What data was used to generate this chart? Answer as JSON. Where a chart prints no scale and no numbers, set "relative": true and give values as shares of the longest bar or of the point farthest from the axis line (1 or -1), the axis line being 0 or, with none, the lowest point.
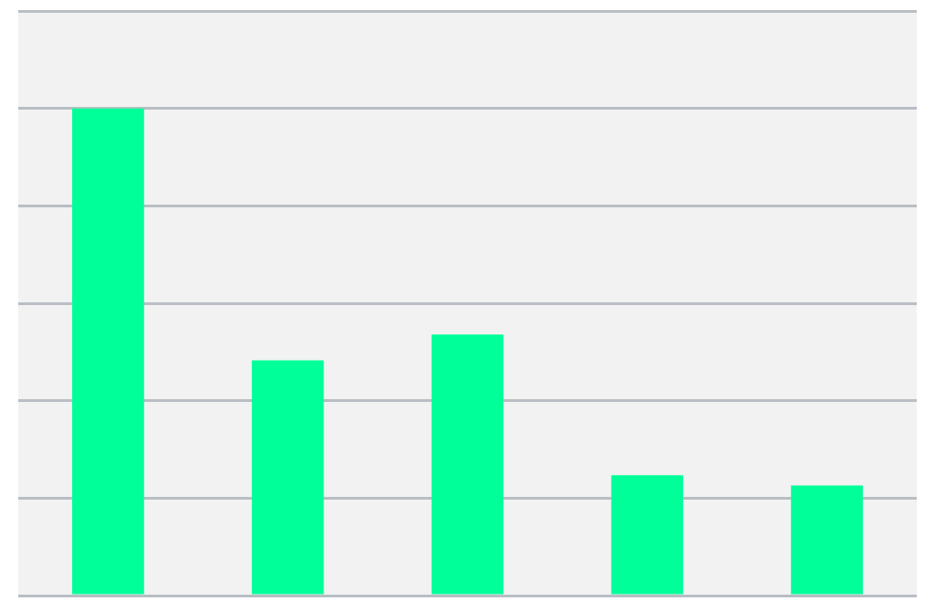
{
  "chart_data": {
    "type": "bar",
    "relative": true,
    "categories": [
      null,
      null,
      null,
      null,
      null
    ],
    "values": [
      1,
      0.483,
      0.536,
      0.247,
      0.226
    ],
    "color": "#00ff99",
    "grid": "y"
  }
}
